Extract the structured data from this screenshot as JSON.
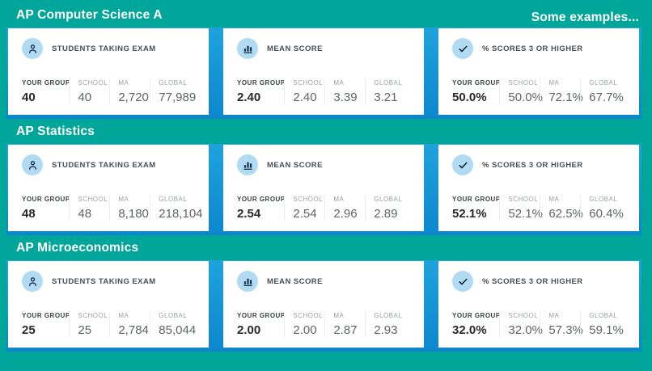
{
  "note": "Some examples...",
  "metric_headers": [
    "YOUR GROUP",
    "SCHOOL",
    "MA",
    "GLOBAL"
  ],
  "colors": {
    "background": "#00a69a",
    "band_blue_top": "#1fa3dc",
    "band_blue_bottom": "#0d86cd",
    "icon_circle": "#b0dbf3",
    "icon_glyph": "#17334e",
    "check_glyph": "#20262c"
  },
  "sections": [
    {
      "title": "AP Computer Science A",
      "cards": [
        {
          "icon": "person-icon",
          "label": "STUDENTS TAKING EXAM",
          "values": [
            "40",
            "40",
            "2,720",
            "77,989"
          ]
        },
        {
          "icon": "bar-chart-icon",
          "label": "MEAN SCORE",
          "values": [
            "2.40",
            "2.40",
            "3.39",
            "3.21"
          ]
        },
        {
          "icon": "check-icon",
          "label": "% SCORES 3 OR HIGHER",
          "values": [
            "50.0%",
            "50.0%",
            "72.1%",
            "67.7%"
          ]
        }
      ]
    },
    {
      "title": "AP Statistics",
      "cards": [
        {
          "icon": "person-icon",
          "label": "STUDENTS TAKING EXAM",
          "values": [
            "48",
            "48",
            "8,180",
            "218,104"
          ]
        },
        {
          "icon": "bar-chart-icon",
          "label": "MEAN SCORE",
          "values": [
            "2.54",
            "2.54",
            "2.96",
            "2.89"
          ]
        },
        {
          "icon": "check-icon",
          "label": "% SCORES 3 OR HIGHER",
          "values": [
            "52.1%",
            "52.1%",
            "62.5%",
            "60.4%"
          ]
        }
      ]
    },
    {
      "title": "AP Microeconomics",
      "cards": [
        {
          "icon": "person-icon",
          "label": "STUDENTS TAKING EXAM",
          "values": [
            "25",
            "25",
            "2,784",
            "85,044"
          ]
        },
        {
          "icon": "bar-chart-icon",
          "label": "MEAN SCORE",
          "values": [
            "2.00",
            "2.00",
            "2.87",
            "2.93"
          ]
        },
        {
          "icon": "check-icon",
          "label": "% SCORES 3 OR HIGHER",
          "values": [
            "32.0%",
            "32.0%",
            "57.3%",
            "59.1%"
          ]
        }
      ]
    }
  ]
}
